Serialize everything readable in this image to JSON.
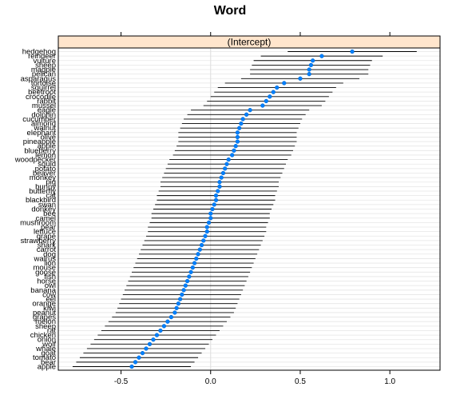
{
  "chart_data": {
    "type": "dotplot",
    "title": "Word",
    "panel_title": "(Intercept)",
    "xlim": [
      -0.85,
      1.28
    ],
    "xticks": [
      -0.5,
      0.0,
      0.5,
      1.0
    ],
    "xtick_labels": [
      "-0.5",
      "0.0",
      "0.5",
      "1.0"
    ],
    "grid": true,
    "colors": {
      "point": "#0080ff",
      "whisker": "#000000",
      "strip": "#ffe5cc",
      "grid": "#e6e6e6",
      "zero_line": "#dddddd"
    },
    "words": [
      "hedgehog",
      "reindeer",
      "vulture",
      "sheep",
      "magpie",
      "pelican",
      "asparagus",
      "tortoise",
      "squirrel",
      "beetroot",
      "crocodile",
      "rabbit",
      "mussel",
      "eagle",
      "dolphin",
      "cucumber",
      "almond",
      "walnut",
      "elephant",
      "olive",
      "pineapple",
      "apple",
      "blueberry",
      "lemon",
      "woodpecker",
      "squid",
      "potato",
      "beaver",
      "monkey",
      "pig",
      "bunny",
      "butterfly",
      "cat",
      "blackbird",
      "swan",
      "donkey",
      "bee",
      "camel",
      "mushroom",
      "pear",
      "lettuce",
      "grape",
      "strawberry",
      "shark",
      "carrot",
      "dog",
      "walrus",
      "lion",
      "mouse",
      "goose",
      "fish",
      "horse",
      "owl",
      "banana",
      "cow",
      "eel",
      "orange",
      "kiwi",
      "peanut",
      "grapes",
      "melon",
      "sheep",
      "rat",
      "chicken",
      "onion",
      "wolf",
      "whale",
      "goat",
      "tomato",
      "bear",
      "apple"
    ],
    "estimates": [
      0.79,
      0.62,
      0.57,
      0.56,
      0.55,
      0.55,
      0.5,
      0.41,
      0.37,
      0.35,
      0.33,
      0.31,
      0.29,
      0.22,
      0.2,
      0.18,
      0.17,
      0.16,
      0.15,
      0.15,
      0.15,
      0.14,
      0.13,
      0.12,
      0.1,
      0.09,
      0.08,
      0.07,
      0.06,
      0.05,
      0.05,
      0.04,
      0.03,
      0.03,
      0.02,
      0.01,
      0.0,
      0.0,
      -0.01,
      -0.02,
      -0.02,
      -0.03,
      -0.04,
      -0.05,
      -0.06,
      -0.07,
      -0.08,
      -0.09,
      -0.1,
      -0.11,
      -0.12,
      -0.13,
      -0.14,
      -0.15,
      -0.16,
      -0.17,
      -0.18,
      -0.19,
      -0.2,
      -0.22,
      -0.24,
      -0.26,
      -0.28,
      -0.3,
      -0.32,
      -0.34,
      -0.36,
      -0.38,
      -0.4,
      -0.42,
      -0.44
    ],
    "half_widths": [
      0.36,
      0.34,
      0.33,
      0.33,
      0.33,
      0.33,
      0.33,
      0.33,
      0.33,
      0.33,
      0.33,
      0.33,
      0.33,
      0.33,
      0.33,
      0.33,
      0.33,
      0.33,
      0.33,
      0.33,
      0.33,
      0.33,
      0.33,
      0.33,
      0.33,
      0.33,
      0.33,
      0.33,
      0.33,
      0.33,
      0.33,
      0.33,
      0.33,
      0.33,
      0.33,
      0.33,
      0.33,
      0.33,
      0.33,
      0.33,
      0.33,
      0.33,
      0.33,
      0.33,
      0.33,
      0.33,
      0.33,
      0.33,
      0.33,
      0.33,
      0.33,
      0.33,
      0.33,
      0.33,
      0.33,
      0.33,
      0.33,
      0.33,
      0.33,
      0.33,
      0.33,
      0.33,
      0.33,
      0.33,
      0.33,
      0.33,
      0.33,
      0.33,
      0.33,
      0.33,
      0.33
    ]
  }
}
